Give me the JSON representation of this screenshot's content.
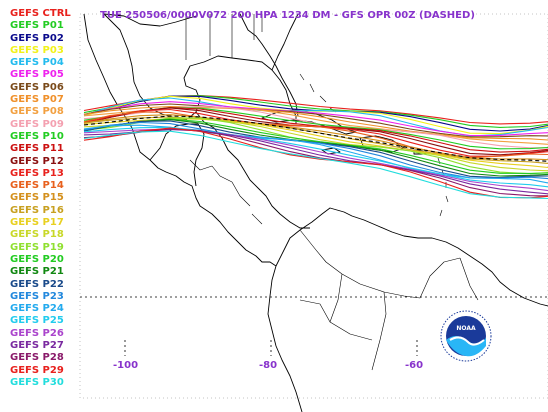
{
  "title": "TUE 250506/0000V072 200 HPA 1234 DM - GFS OPR 00Z (DASHED)",
  "legend": [
    {
      "label": "GEFS CTRL",
      "color": "#e8211d"
    },
    {
      "label": "GEFS P01",
      "color": "#22cc22"
    },
    {
      "label": "GEFS P02",
      "color": "#0a0a8c"
    },
    {
      "label": "GEFS P03",
      "color": "#f2f21a"
    },
    {
      "label": "GEFS P04",
      "color": "#22bbee"
    },
    {
      "label": "GEFS P05",
      "color": "#ee22ee"
    },
    {
      "label": "GEFS P06",
      "color": "#7a4a1a"
    },
    {
      "label": "GEFS P07",
      "color": "#f0902a"
    },
    {
      "label": "GEFS P08",
      "color": "#f2a040"
    },
    {
      "label": "GEFS P09",
      "color": "#f4a0b0"
    },
    {
      "label": "GEFS P10",
      "color": "#22cc22"
    },
    {
      "label": "GEFS P11",
      "color": "#cc1111"
    },
    {
      "label": "GEFS P12",
      "color": "#8a1010"
    },
    {
      "label": "GEFS P13",
      "color": "#e8211d"
    },
    {
      "label": "GEFS P14",
      "color": "#e8601d"
    },
    {
      "label": "GEFS P15",
      "color": "#d4901d"
    },
    {
      "label": "GEFS P16",
      "color": "#c8a020"
    },
    {
      "label": "GEFS P17",
      "color": "#e8d020"
    },
    {
      "label": "GEFS P18",
      "color": "#c8d828"
    },
    {
      "label": "GEFS P19",
      "color": "#90e030"
    },
    {
      "label": "GEFS P20",
      "color": "#22cc22"
    },
    {
      "label": "GEFS P21",
      "color": "#118811"
    },
    {
      "label": "GEFS P22",
      "color": "#1a4a8a"
    },
    {
      "label": "GEFS P23",
      "color": "#2288dd"
    },
    {
      "label": "GEFS P24",
      "color": "#22aaee"
    },
    {
      "label": "GEFS P25",
      "color": "#22ccee"
    },
    {
      "label": "GEFS P26",
      "color": "#aa44cc"
    },
    {
      "label": "GEFS P27",
      "color": "#7a2aa0"
    },
    {
      "label": "GEFS P28",
      "color": "#8a1a6a"
    },
    {
      "label": "GEFS P29",
      "color": "#e8211d"
    },
    {
      "label": "GEFS P30",
      "color": "#22dddd"
    }
  ],
  "longitudes": [
    {
      "label": "-100",
      "lon": -100
    },
    {
      "label": "-80",
      "lon": -80
    },
    {
      "label": "-60",
      "lon": -60
    }
  ],
  "latitude_gridlines": [
    20
  ],
  "colors": {
    "title": "#8833cc",
    "coast": "#000000",
    "grid": "#000000"
  },
  "logo": {
    "text": "NOAA",
    "icon": "noaa-logo-icon"
  }
}
